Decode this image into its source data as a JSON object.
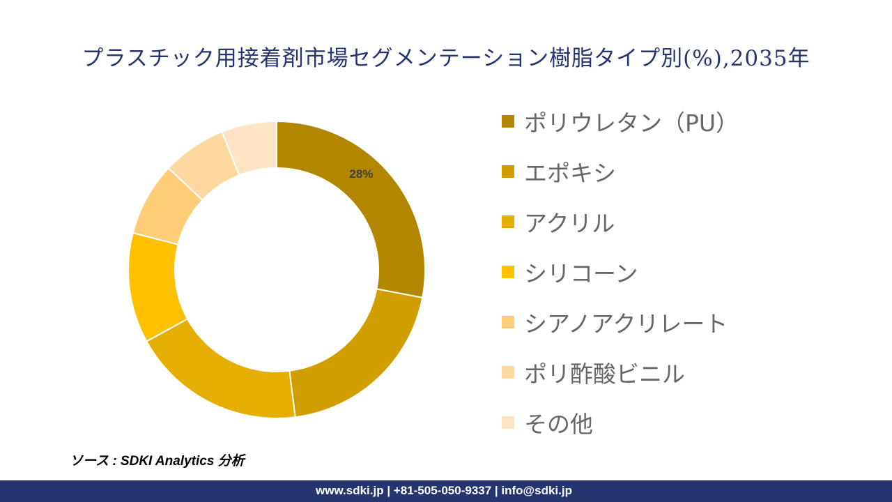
{
  "chart_data": {
    "type": "pie",
    "subtype": "donut",
    "title": "プラスチック用接着剤市場セグメンテーション樹脂タイプ別(%),2035年",
    "categories": [
      "ポリウレタン（PU）",
      "エポキシ",
      "アクリル",
      "シリコーン",
      "シアノアクリレート",
      "ポリ酢酸ビニル",
      "その他"
    ],
    "values": [
      28,
      20,
      19,
      12,
      8,
      7,
      6
    ],
    "colors": [
      "#B38600",
      "#D19E00",
      "#E6AE00",
      "#FFC000",
      "#FFCC77",
      "#FFD8A0",
      "#FFE4C4"
    ],
    "data_labels": [
      "28%",
      "",
      "",
      "",
      "",
      "",
      ""
    ],
    "legend": "right"
  },
  "source": "ソース : SDKI Analytics 分析",
  "footer": "www.sdki.jp | +81-505-050-9337 | info@sdki.jp"
}
